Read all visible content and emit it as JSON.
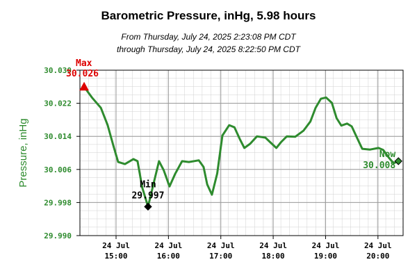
{
  "chart_data": {
    "type": "line",
    "title": "Barometric Pressure, inHg, 5.98 hours",
    "subtitle": [
      "From Thursday, July 24, 2025 2:23:08 PM CDT",
      "through Thursday, July 24, 2025 8:22:50 PM CDT"
    ],
    "y_label": "Pressure, inHg",
    "xlim": [
      14.31,
      20.48
    ],
    "ylim": [
      29.99,
      30.03
    ],
    "yticks": [
      {
        "value": 29.99,
        "label": "29.990"
      },
      29.998,
      30.006,
      30.014,
      30.022,
      {
        "value": 30.03,
        "label": "30.030"
      }
    ],
    "xticks": [
      {
        "value": 15,
        "label": "24 Jul\n15:00"
      },
      {
        "value": 16,
        "label": "24 Jul\n16:00"
      },
      {
        "value": 17,
        "label": "24 Jul\n17:00"
      },
      {
        "value": 18,
        "label": "24 Jul\n18:00"
      },
      {
        "value": 19,
        "label": "24 Jul\n19:00"
      },
      {
        "value": 20,
        "label": "24 Jul\n20:00"
      }
    ],
    "grid": true,
    "series": [
      {
        "color": "#2e8b2e",
        "x": [
          14.39,
          14.54,
          14.71,
          14.84,
          14.95,
          15.04,
          15.17,
          15.33,
          15.41,
          15.5,
          15.61,
          15.73,
          15.82,
          15.91,
          16.02,
          16.13,
          16.26,
          16.39,
          16.58,
          16.67,
          16.74,
          16.83,
          16.93,
          17.03,
          17.16,
          17.26,
          17.36,
          17.45,
          17.56,
          17.69,
          17.85,
          17.95,
          18.06,
          18.15,
          18.26,
          18.42,
          18.58,
          18.71,
          18.81,
          18.91,
          19.01,
          19.12,
          19.21,
          19.3,
          19.41,
          19.5,
          19.61,
          19.7,
          19.85,
          20.01,
          20.1,
          20.21,
          20.3,
          20.39
        ],
        "values": [
          30.026,
          30.0234,
          30.0209,
          30.0167,
          30.0117,
          30.0078,
          30.0073,
          30.0085,
          30.008,
          30.0016,
          29.997,
          30.0033,
          30.008,
          30.0058,
          30.0019,
          30.005,
          30.008,
          30.0078,
          30.0082,
          30.0066,
          30.0024,
          29.9999,
          30.005,
          30.0142,
          30.0167,
          30.0162,
          30.0134,
          30.0112,
          30.0122,
          30.014,
          30.0137,
          30.0125,
          30.0112,
          30.0126,
          30.014,
          30.0139,
          30.0154,
          30.0176,
          30.0209,
          30.0231,
          30.0234,
          30.0221,
          30.0184,
          30.0166,
          30.0171,
          30.0164,
          30.0134,
          30.011,
          30.0108,
          30.0112,
          30.0107,
          30.0088,
          30.0075,
          30.008
        ]
      }
    ],
    "markers": [
      {
        "label": "Max",
        "x": 14.39,
        "y": 30.026,
        "value_label": "30.026",
        "color": "#dd0000",
        "shape": "triangle"
      },
      {
        "label": "Min",
        "x": 15.61,
        "y": 29.997,
        "value_label": "29.997",
        "color": "#000000",
        "shape": "diamond"
      },
      {
        "label": "Now",
        "x": 20.39,
        "y": 30.008,
        "value_label": "30.008",
        "color": "#2e8b2e",
        "shape": "diamond"
      }
    ]
  }
}
